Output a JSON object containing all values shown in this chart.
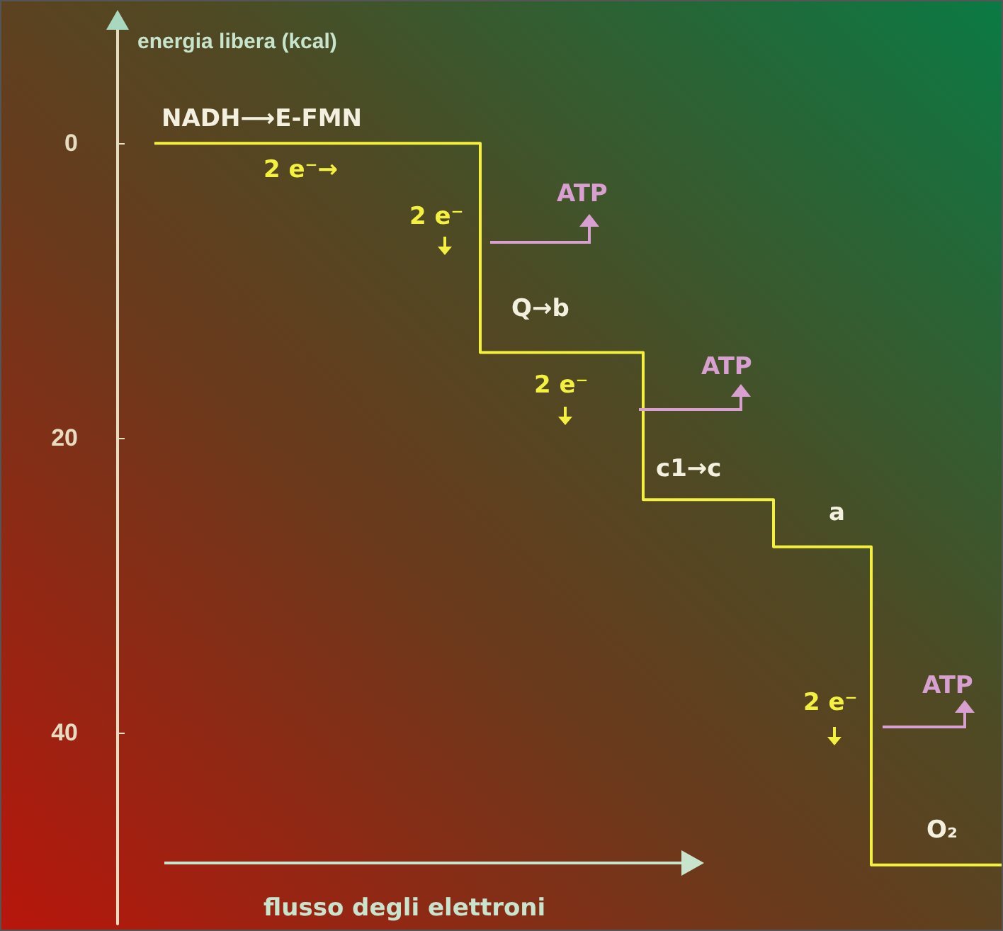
{
  "chart_data": {
    "type": "step",
    "ylabel": "energia libera (kcal)",
    "xlabel": "flusso degli elettroni",
    "categories": [
      null,
      null,
      null,
      null,
      null,
      null,
      null,
      null,
      null,
      null,
      null,
      null,
      null,
      null,
      null,
      null,
      null,
      null,
      null,
      null,
      null,
      null,
      null,
      null,
      null,
      null,
      null
    ],
    "series": [
      {
        "color": "#f4f040",
        "values": [
          0,
          0,
          0,
          0,
          0,
          0,
          0,
          0,
          0,
          0,
          14.2,
          14.2,
          14.2,
          14.2,
          14.2,
          24.2,
          24.2,
          24.2,
          24.2,
          27.4,
          27.4,
          27.4,
          49,
          49,
          49,
          49,
          49
        ]
      }
    ],
    "ylim": [
      53,
      -8
    ],
    "yticks": [
      0,
      20,
      40
    ],
    "tick_labels": "y",
    "grid": false,
    "line_style": "solid",
    "annotations": [
      "NADH⟶E-FMN",
      "2 e⁻→",
      "2 e⁻",
      "ATP",
      "Q→b",
      "2 e⁻",
      "ATP",
      "c1→c",
      "a",
      "2 e⁻",
      "ATP",
      "O₂"
    ]
  }
}
